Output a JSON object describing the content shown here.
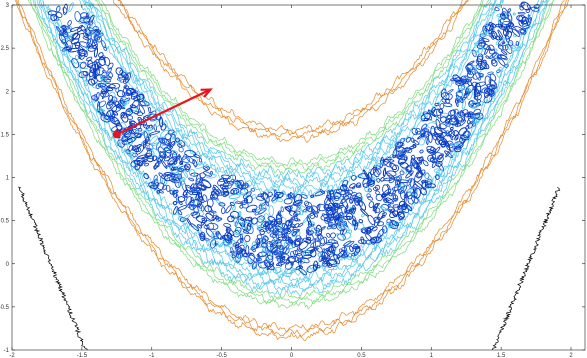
{
  "chart_data": {
    "type": "contour",
    "title": "",
    "xlabel": "",
    "ylabel": "",
    "xlim": [
      -2,
      2.1
    ],
    "ylim": [
      -1,
      3
    ],
    "x_ticks": [
      -2,
      -1.5,
      -1,
      -0.5,
      0,
      0.5,
      1,
      1.5,
      2
    ],
    "x_tick_labels": [
      "-2",
      "-1.5",
      "-1",
      "-0.5",
      "0",
      "0.5",
      "1",
      "1.5",
      "2"
    ],
    "y_ticks": [
      -1,
      -0.5,
      0,
      0.5,
      1,
      1.5,
      2,
      2.5,
      3
    ],
    "y_tick_labels": [
      "-1",
      "-0.5",
      "0",
      "0.5",
      "1",
      "1.5",
      "2",
      "2.5",
      "3"
    ],
    "grid": false,
    "contour_bands": [
      {
        "level": "outermost",
        "color": "#000000",
        "center_offset": 2.3,
        "half_width": 0.05,
        "noise": 0.05
      },
      {
        "level": "outer",
        "color": "#e8892b",
        "center_offset": 0.0,
        "half_width": 1.15,
        "noise": 0.05
      },
      {
        "level": "middle",
        "color": "#7fdc7f",
        "center_offset": 0.0,
        "half_width": 0.78,
        "noise": 0.05
      },
      {
        "level": "inner",
        "color": "#55c8ea",
        "center_offset": 0.0,
        "half_width": 0.55,
        "noise": 0.07
      },
      {
        "level": "core",
        "color": "#0a3dc4",
        "center_offset": 0.0,
        "half_width": 0.45,
        "noise": 0.12
      }
    ],
    "valley_curve": "y = x^2 + 0.35",
    "arrow": {
      "start": [
        -1.25,
        1.5
      ],
      "end": [
        -0.58,
        2.02
      ],
      "color": "#e8141e"
    }
  }
}
